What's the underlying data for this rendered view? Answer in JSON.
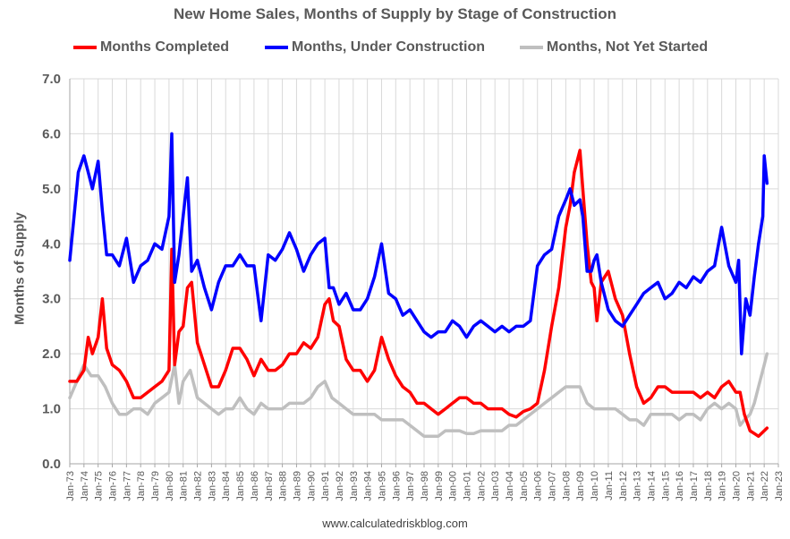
{
  "chart_data": {
    "type": "line",
    "title": "New Home Sales, Months of Supply by Stage of Construction",
    "ylabel": "Months of Supply",
    "xlabel": "",
    "ylim": [
      0,
      7
    ],
    "yticks": [
      "0.0",
      "1.0",
      "2.0",
      "3.0",
      "4.0",
      "5.0",
      "6.0",
      "7.0"
    ],
    "xlim": [
      1973.0,
      2023.0
    ],
    "xticks": [
      "Jan-73",
      "Jan-74",
      "Jan-75",
      "Jan-76",
      "Jan-77",
      "Jan-78",
      "Jan-79",
      "Jan-80",
      "Jan-81",
      "Jan-82",
      "Jan-83",
      "Jan-84",
      "Jan-85",
      "Jan-86",
      "Jan-87",
      "Jan-88",
      "Jan-89",
      "Jan-90",
      "Jan-91",
      "Jan-92",
      "Jan-93",
      "Jan-94",
      "Jan-95",
      "Jan-96",
      "Jan-97",
      "Jan-98",
      "Jan-99",
      "Jan-00",
      "Jan-01",
      "Jan-02",
      "Jan-03",
      "Jan-04",
      "Jan-05",
      "Jan-06",
      "Jan-07",
      "Jan-08",
      "Jan-09",
      "Jan-10",
      "Jan-11",
      "Jan-12",
      "Jan-13",
      "Jan-14",
      "Jan-15",
      "Jan-16",
      "Jan-17",
      "Jan-18",
      "Jan-19",
      "Jan-20",
      "Jan-21",
      "Jan-22",
      "Jan-23"
    ],
    "grid": true,
    "legend_position": "top",
    "series": [
      {
        "name": "Months Completed",
        "color": "#ff0000",
        "x": [
          1973.0,
          1973.5,
          1974.0,
          1974.3,
          1974.6,
          1975.0,
          1975.3,
          1975.6,
          1976.0,
          1976.5,
          1977.0,
          1977.5,
          1978.0,
          1978.5,
          1979.0,
          1979.5,
          1980.0,
          1980.2,
          1980.4,
          1980.7,
          1981.0,
          1981.3,
          1981.6,
          1982.0,
          1982.5,
          1983.0,
          1983.5,
          1984.0,
          1984.5,
          1985.0,
          1985.5,
          1986.0,
          1986.5,
          1987.0,
          1987.5,
          1988.0,
          1988.5,
          1989.0,
          1989.5,
          1990.0,
          1990.5,
          1991.0,
          1991.3,
          1991.6,
          1992.0,
          1992.5,
          1993.0,
          1993.5,
          1994.0,
          1994.5,
          1995.0,
          1995.5,
          1996.0,
          1996.5,
          1997.0,
          1997.5,
          1998.0,
          1998.5,
          1999.0,
          1999.5,
          2000.0,
          2000.5,
          2001.0,
          2001.5,
          2002.0,
          2002.5,
          2003.0,
          2003.5,
          2004.0,
          2004.5,
          2005.0,
          2005.5,
          2006.0,
          2006.5,
          2007.0,
          2007.5,
          2008.0,
          2008.3,
          2008.6,
          2009.0,
          2009.2,
          2009.5,
          2009.8,
          2010.0,
          2010.2,
          2010.5,
          2011.0,
          2011.5,
          2012.0,
          2012.5,
          2013.0,
          2013.5,
          2014.0,
          2014.5,
          2015.0,
          2015.5,
          2016.0,
          2016.5,
          2017.0,
          2017.5,
          2018.0,
          2018.5,
          2019.0,
          2019.5,
          2020.0,
          2020.3,
          2020.6,
          2021.0,
          2021.3,
          2021.6,
          2022.0,
          2022.2
        ],
        "values": [
          1.5,
          1.5,
          1.7,
          2.3,
          2.0,
          2.3,
          3.0,
          2.1,
          1.8,
          1.7,
          1.5,
          1.2,
          1.2,
          1.3,
          1.4,
          1.5,
          1.7,
          3.9,
          1.8,
          2.4,
          2.5,
          3.2,
          3.3,
          2.2,
          1.8,
          1.4,
          1.4,
          1.7,
          2.1,
          2.1,
          1.9,
          1.6,
          1.9,
          1.7,
          1.7,
          1.8,
          2.0,
          2.0,
          2.2,
          2.1,
          2.3,
          2.9,
          3.0,
          2.6,
          2.5,
          1.9,
          1.7,
          1.7,
          1.5,
          1.7,
          2.3,
          1.9,
          1.6,
          1.4,
          1.3,
          1.1,
          1.1,
          1.0,
          0.9,
          1.0,
          1.1,
          1.2,
          1.2,
          1.1,
          1.1,
          1.0,
          1.0,
          1.0,
          0.9,
          0.85,
          0.95,
          1.0,
          1.1,
          1.7,
          2.5,
          3.2,
          4.3,
          4.7,
          5.3,
          5.7,
          5.0,
          4.0,
          3.3,
          3.2,
          2.6,
          3.3,
          3.5,
          3.0,
          2.7,
          2.0,
          1.4,
          1.1,
          1.2,
          1.4,
          1.4,
          1.3,
          1.3,
          1.3,
          1.3,
          1.2,
          1.3,
          1.2,
          1.4,
          1.5,
          1.3,
          1.3,
          0.9,
          0.6,
          0.55,
          0.5,
          0.6,
          0.65
        ]
      },
      {
        "name": "Months, Under Construction",
        "color": "#0000ff",
        "x": [
          1973.0,
          1973.3,
          1973.6,
          1974.0,
          1974.3,
          1974.6,
          1975.0,
          1975.3,
          1975.6,
          1976.0,
          1976.5,
          1977.0,
          1977.5,
          1978.0,
          1978.5,
          1979.0,
          1979.5,
          1980.0,
          1980.2,
          1980.4,
          1980.7,
          1981.0,
          1981.3,
          1981.6,
          1982.0,
          1982.5,
          1983.0,
          1983.5,
          1984.0,
          1984.5,
          1985.0,
          1985.5,
          1986.0,
          1986.5,
          1987.0,
          1987.5,
          1988.0,
          1988.5,
          1989.0,
          1989.5,
          1990.0,
          1990.5,
          1991.0,
          1991.3,
          1991.6,
          1992.0,
          1992.5,
          1993.0,
          1993.5,
          1994.0,
          1994.5,
          1995.0,
          1995.5,
          1996.0,
          1996.5,
          1997.0,
          1997.5,
          1998.0,
          1998.5,
          1999.0,
          1999.5,
          2000.0,
          2000.5,
          2001.0,
          2001.5,
          2002.0,
          2002.5,
          2003.0,
          2003.5,
          2004.0,
          2004.5,
          2005.0,
          2005.5,
          2006.0,
          2006.5,
          2007.0,
          2007.5,
          2008.0,
          2008.3,
          2008.6,
          2009.0,
          2009.2,
          2009.5,
          2009.8,
          2010.0,
          2010.2,
          2010.5,
          2011.0,
          2011.5,
          2012.0,
          2012.5,
          2013.0,
          2013.5,
          2014.0,
          2014.5,
          2015.0,
          2015.5,
          2016.0,
          2016.5,
          2017.0,
          2017.5,
          2018.0,
          2018.5,
          2019.0,
          2019.5,
          2020.0,
          2020.2,
          2020.4,
          2020.7,
          2021.0,
          2021.3,
          2021.6,
          2021.9,
          2022.0,
          2022.2
        ],
        "values": [
          3.7,
          4.5,
          5.3,
          5.6,
          5.3,
          5.0,
          5.5,
          4.6,
          3.8,
          3.8,
          3.6,
          4.1,
          3.3,
          3.6,
          3.7,
          4.0,
          3.9,
          4.5,
          6.0,
          3.3,
          3.8,
          4.5,
          5.2,
          3.5,
          3.7,
          3.2,
          2.8,
          3.3,
          3.6,
          3.6,
          3.8,
          3.6,
          3.6,
          2.6,
          3.8,
          3.7,
          3.9,
          4.2,
          3.9,
          3.5,
          3.8,
          4.0,
          4.1,
          3.2,
          3.2,
          2.9,
          3.1,
          2.8,
          2.8,
          3.0,
          3.4,
          4.0,
          3.1,
          3.0,
          2.7,
          2.8,
          2.6,
          2.4,
          2.3,
          2.4,
          2.4,
          2.6,
          2.5,
          2.3,
          2.5,
          2.6,
          2.5,
          2.4,
          2.5,
          2.4,
          2.5,
          2.5,
          2.6,
          3.6,
          3.8,
          3.9,
          4.5,
          4.8,
          5.0,
          4.7,
          4.8,
          4.5,
          3.5,
          3.5,
          3.7,
          3.8,
          3.3,
          2.8,
          2.6,
          2.5,
          2.7,
          2.9,
          3.1,
          3.2,
          3.3,
          3.0,
          3.1,
          3.3,
          3.2,
          3.4,
          3.3,
          3.5,
          3.6,
          4.3,
          3.6,
          3.3,
          3.7,
          2.0,
          3.0,
          2.7,
          3.4,
          4.0,
          4.5,
          5.6,
          5.1
        ]
      },
      {
        "name": "Months, Not Yet Started",
        "color": "#bfbfbf",
        "x": [
          1973.0,
          1973.5,
          1974.0,
          1974.5,
          1975.0,
          1975.5,
          1976.0,
          1976.5,
          1977.0,
          1977.5,
          1978.0,
          1978.5,
          1979.0,
          1979.5,
          1980.0,
          1980.4,
          1980.7,
          1981.0,
          1981.5,
          1982.0,
          1982.5,
          1983.0,
          1983.5,
          1984.0,
          1984.5,
          1985.0,
          1985.5,
          1986.0,
          1986.5,
          1987.0,
          1987.5,
          1988.0,
          1988.5,
          1989.0,
          1989.5,
          1990.0,
          1990.5,
          1991.0,
          1991.5,
          1992.0,
          1992.5,
          1993.0,
          1993.5,
          1994.0,
          1994.5,
          1995.0,
          1995.5,
          1996.0,
          1996.5,
          1997.0,
          1997.5,
          1998.0,
          1998.5,
          1999.0,
          1999.5,
          2000.0,
          2000.5,
          2001.0,
          2001.5,
          2002.0,
          2002.5,
          2003.0,
          2003.5,
          2004.0,
          2004.5,
          2005.0,
          2005.5,
          2006.0,
          2006.5,
          2007.0,
          2007.5,
          2008.0,
          2008.5,
          2009.0,
          2009.5,
          2010.0,
          2010.5,
          2011.0,
          2011.5,
          2012.0,
          2012.5,
          2013.0,
          2013.5,
          2014.0,
          2014.5,
          2015.0,
          2015.5,
          2016.0,
          2016.5,
          2017.0,
          2017.5,
          2018.0,
          2018.5,
          2019.0,
          2019.5,
          2020.0,
          2020.3,
          2020.6,
          2021.0,
          2021.3,
          2021.6,
          2022.0,
          2022.2
        ],
        "values": [
          1.2,
          1.5,
          1.8,
          1.6,
          1.6,
          1.4,
          1.1,
          0.9,
          0.9,
          1.0,
          1.0,
          0.9,
          1.1,
          1.2,
          1.3,
          1.8,
          1.1,
          1.5,
          1.7,
          1.2,
          1.1,
          1.0,
          0.9,
          1.0,
          1.0,
          1.2,
          1.0,
          0.9,
          1.1,
          1.0,
          1.0,
          1.0,
          1.1,
          1.1,
          1.1,
          1.2,
          1.4,
          1.5,
          1.2,
          1.1,
          1.0,
          0.9,
          0.9,
          0.9,
          0.9,
          0.8,
          0.8,
          0.8,
          0.8,
          0.7,
          0.6,
          0.5,
          0.5,
          0.5,
          0.6,
          0.6,
          0.6,
          0.55,
          0.55,
          0.6,
          0.6,
          0.6,
          0.6,
          0.7,
          0.7,
          0.8,
          0.9,
          1.0,
          1.1,
          1.2,
          1.3,
          1.4,
          1.4,
          1.4,
          1.1,
          1.0,
          1.0,
          1.0,
          1.0,
          0.9,
          0.8,
          0.8,
          0.7,
          0.9,
          0.9,
          0.9,
          0.9,
          0.8,
          0.9,
          0.9,
          0.8,
          1.0,
          1.1,
          1.0,
          1.1,
          1.0,
          0.7,
          0.8,
          0.9,
          1.1,
          1.4,
          1.8,
          2.0
        ]
      }
    ]
  },
  "footer": {
    "source": "www.calculatedriskblog.com"
  }
}
